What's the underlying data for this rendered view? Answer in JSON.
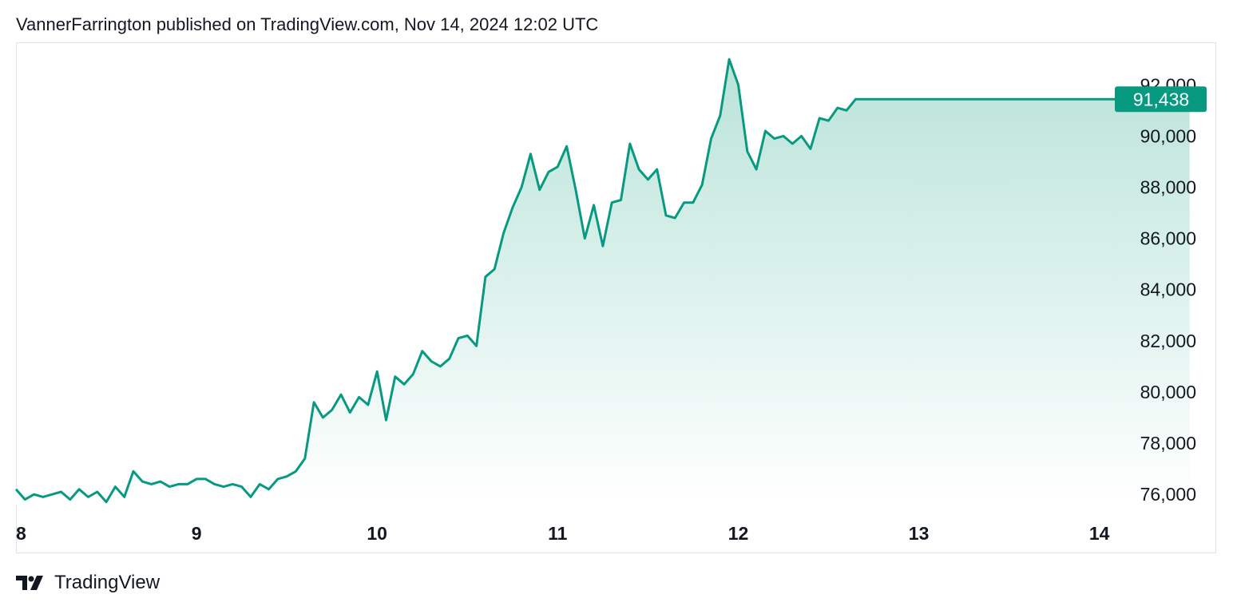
{
  "header": {
    "text": "VannerFarrington published on TradingView.com, Nov 14, 2024 12:02 UTC"
  },
  "footer": {
    "brand": "TradingView",
    "logo_icon": "tradingview-logo-icon"
  },
  "colors": {
    "line": "#089981",
    "fill_top": "#b9e3d9",
    "fill_bottom": "#ffffff",
    "axis_text": "#131722",
    "last_price_bg": "#089981"
  },
  "chart_data": {
    "type": "area",
    "title": "",
    "xlabel": "",
    "ylabel": "",
    "x_ticks": [
      "8",
      "9",
      "10",
      "11",
      "12",
      "13",
      "14"
    ],
    "y_ticks": [
      "76,000",
      "78,000",
      "80,000",
      "82,000",
      "84,000",
      "86,000",
      "88,000",
      "90,000",
      "92,000"
    ],
    "ylim": [
      75600,
      93600
    ],
    "xlim": [
      8.0,
      14.74
    ],
    "last_price_label": "91,438",
    "last_price": 91438,
    "grid": false,
    "series": [
      {
        "x": [
          8.0,
          8.05,
          8.1,
          8.15,
          8.2,
          8.25,
          8.3,
          8.35,
          8.4,
          8.45,
          8.5,
          8.55,
          8.6,
          8.65,
          8.7,
          8.75,
          8.8,
          8.85,
          8.9,
          8.95,
          9.0,
          9.05,
          9.1,
          9.15,
          9.2,
          9.25,
          9.3,
          9.35,
          9.4,
          9.45,
          9.5,
          9.55,
          9.6,
          9.65,
          9.7,
          9.75,
          9.8,
          9.85,
          9.9,
          9.95,
          10.0,
          10.05,
          10.1,
          10.15,
          10.2,
          10.25,
          10.3,
          10.35,
          10.4,
          10.45,
          10.5,
          10.55,
          10.6,
          10.65,
          10.7,
          10.75,
          10.8,
          10.85,
          10.9,
          10.95,
          11.0,
          11.05,
          11.1,
          11.15,
          11.2,
          11.25,
          11.3,
          11.35,
          11.4,
          11.45,
          11.5,
          11.55,
          11.6,
          11.65,
          11.7,
          11.75,
          11.8,
          11.85,
          11.9,
          11.95,
          12.0,
          12.05,
          12.1,
          12.15,
          12.2,
          12.25,
          12.3,
          12.35,
          12.4,
          12.45,
          12.5,
          12.55,
          12.6,
          12.65,
          12.7,
          12.75,
          12.8,
          12.85,
          12.9,
          12.95,
          13.0,
          13.05,
          13.1,
          13.15,
          13.2,
          13.25,
          13.3,
          13.35,
          13.4,
          13.45,
          13.5,
          13.55,
          13.6,
          13.62,
          13.65,
          13.7,
          13.75,
          13.8,
          13.85,
          13.9,
          13.95,
          14.0,
          14.05,
          14.1,
          14.15,
          14.2,
          14.25,
          14.3,
          14.35,
          14.4,
          14.45,
          14.5
        ],
        "y": [
          76200,
          75800,
          76000,
          75900,
          76000,
          76100,
          75800,
          76200,
          75900,
          76100,
          75700,
          76300,
          75900,
          76900,
          76500,
          76400,
          76500,
          76300,
          76400,
          76400,
          76600,
          76600,
          76400,
          76300,
          76400,
          76300,
          75900,
          76400,
          76200,
          76600,
          76700,
          76900,
          77400,
          79600,
          79000,
          79300,
          79900,
          79200,
          79800,
          79500,
          80800,
          78900,
          80600,
          80300,
          80700,
          81600,
          81200,
          81000,
          81300,
          82100,
          82200,
          81800,
          84500,
          84800,
          86200,
          87200,
          88000,
          89300,
          87900,
          88600,
          88800,
          89600,
          87900,
          86000,
          87300,
          85700,
          87400,
          87500,
          89700,
          88700,
          88300,
          88700,
          86900,
          86800,
          87400,
          87400,
          88100,
          89900,
          90800,
          93000,
          92000,
          89400,
          88700,
          90200,
          89900,
          90000,
          89700,
          90000,
          89500,
          90700,
          90600,
          91100,
          91000,
          91438,
          91438,
          91438,
          91438,
          91438,
          91438,
          91438,
          91438,
          91438,
          91438,
          91438,
          91438,
          91438,
          91438,
          91438,
          91438,
          91438,
          91438,
          91438,
          91438,
          91438,
          91438,
          91438,
          91438,
          91438,
          91438,
          91438,
          91438,
          91438,
          91438,
          91438,
          91438,
          91438,
          91438,
          91438,
          91438,
          91438,
          91438,
          91438
        ]
      }
    ]
  }
}
